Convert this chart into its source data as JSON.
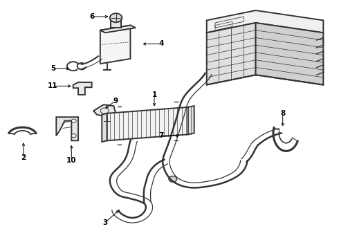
{
  "bg_color": "#ffffff",
  "line_color": "#333333",
  "label_color": "#000000",
  "fig_width": 4.9,
  "fig_height": 3.6,
  "dpi": 100,
  "lw_hose": 2.2,
  "lw_part": 1.4,
  "lw_thin": 0.8,
  "label_fontsize": 7.5,
  "arrow_lw": 0.7,
  "labels": {
    "1": [
      0.455,
      0.435,
      0.455,
      0.38
    ],
    "2": [
      0.068,
      0.565,
      0.068,
      0.635
    ],
    "3": [
      0.355,
      0.84,
      0.31,
      0.895
    ],
    "4": [
      0.415,
      0.175,
      0.475,
      0.175
    ],
    "5": [
      0.21,
      0.275,
      0.155,
      0.275
    ],
    "6": [
      0.325,
      0.065,
      0.27,
      0.065
    ],
    "7": [
      0.535,
      0.545,
      0.475,
      0.545
    ],
    "8": [
      0.835,
      0.515,
      0.835,
      0.455
    ],
    "9": [
      0.305,
      0.44,
      0.34,
      0.405
    ],
    "10": [
      0.21,
      0.575,
      0.21,
      0.645
    ],
    "11": [
      0.215,
      0.345,
      0.155,
      0.345
    ]
  }
}
